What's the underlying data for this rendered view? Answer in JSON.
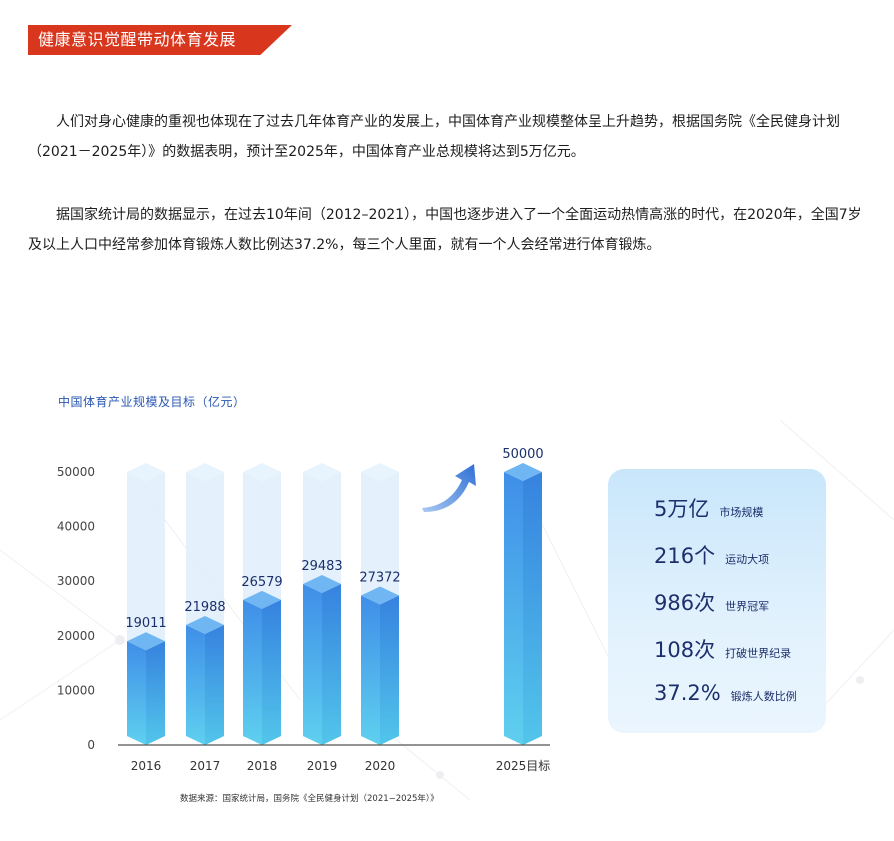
{
  "section": {
    "title": "健康意识觉醒带动体育发展"
  },
  "paragraphs": [
    "人们对身心健康的重视也体现在了过去几年体育产业的发展上，中国体育产业规模整体呈上升趋势，根据国务院《全民健身计划（2021－2025年）》的数据表明，预计至2025年，中国体育产业总规模将达到5万亿元。",
    "据国家统计局的数据显示，在过去10年间（2012–2021），中国也逐步进入了一个全面运动热情高涨的时代，在2020年，全国7岁及以上人口中经常参加体育锻炼人数比例达37.2%，每三个人里面，就有一个人会经常进行体育锻炼。"
  ],
  "chart_data": {
    "type": "bar",
    "title": "中国体育产业规模及目标（亿元）",
    "categories": [
      "2016",
      "2017",
      "2018",
      "2019",
      "2020",
      "2025目标"
    ],
    "values": [
      19011,
      21988,
      26579,
      29483,
      27372,
      50000
    ],
    "value_labels": [
      "19011",
      "21988",
      "26579",
      "29483",
      "27372",
      "50000"
    ],
    "yticks": [
      0,
      10000,
      20000,
      30000,
      40000,
      50000
    ],
    "ylim": [
      0,
      50000
    ],
    "grid": false,
    "legend": "none",
    "colors": {
      "bar_top": "#3f8ee8",
      "bar_bottom": "#5fd0ef",
      "track": "#dfeefc",
      "label": "#1c2f6b",
      "axis": "#555555"
    }
  },
  "source_note": "数据来源：国家统计局，国务院《全民健身计划（2021−2025年）》",
  "arrow_icon": "up-arrow-icon",
  "stats": [
    {
      "value": "5万亿",
      "label": "市场规模"
    },
    {
      "value": "216个",
      "label": "运动大项"
    },
    {
      "value": "986次",
      "label": "世界冠军"
    },
    {
      "value": "108次",
      "label": "打破世界纪录"
    },
    {
      "value": "37.2%",
      "label": "锻炼人数比例"
    }
  ]
}
